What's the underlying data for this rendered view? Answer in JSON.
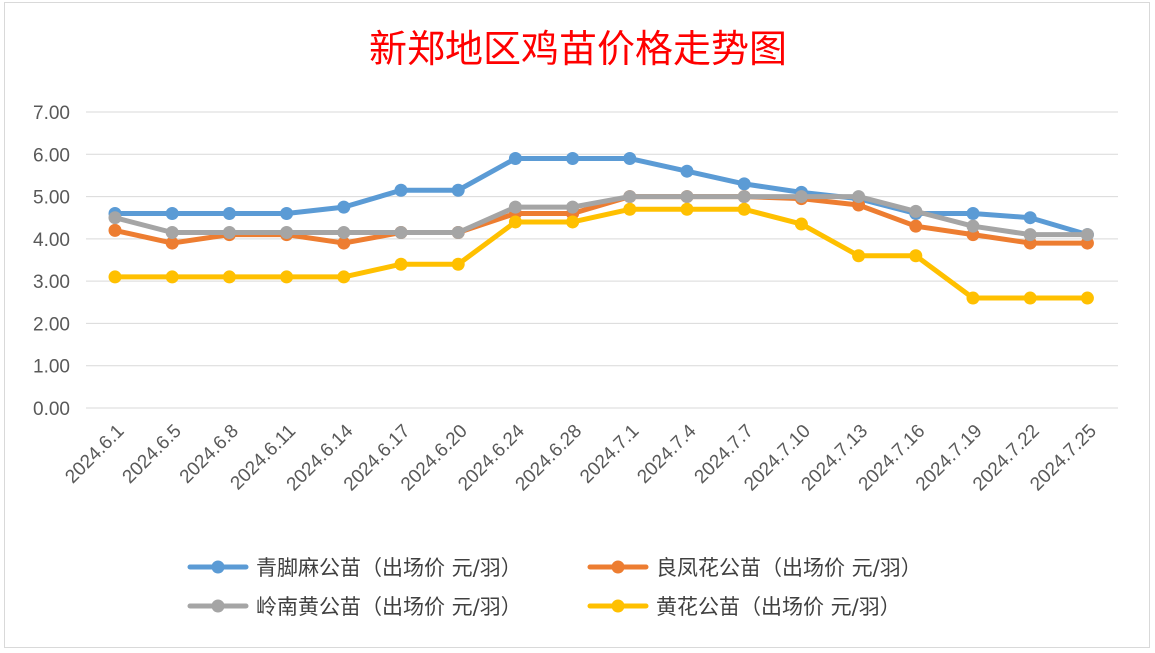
{
  "chart_data": {
    "type": "line",
    "title": "新郑地区鸡苗价格走势图",
    "xlabel": "",
    "ylabel": "",
    "ylim": [
      0,
      7
    ],
    "yticks": [
      "0.00",
      "1.00",
      "2.00",
      "3.00",
      "4.00",
      "5.00",
      "6.00",
      "7.00"
    ],
    "grid": true,
    "legend_position": "bottom",
    "categories": [
      "2024.6.1",
      "2024.6.5",
      "2024.6.8",
      "2024.6.11",
      "2024.6.14",
      "2024.6.17",
      "2024.6.20",
      "2024.6.24",
      "2024.6.28",
      "2024.7.1",
      "2024.7.4",
      "2024.7.7",
      "2024.7.10",
      "2024.7.13",
      "2024.7.16",
      "2024.7.19",
      "2024.7.22",
      "2024.7.25"
    ],
    "series": [
      {
        "name": "青脚麻公苗（出场价 元/羽）",
        "color": "#5b9bd5",
        "values": [
          4.6,
          4.6,
          4.6,
          4.6,
          4.75,
          5.15,
          5.15,
          5.9,
          5.9,
          5.9,
          5.6,
          5.3,
          5.1,
          4.95,
          4.6,
          4.6,
          4.5,
          4.1
        ]
      },
      {
        "name": "良凤花公苗（出场价 元/羽）",
        "color": "#ed7d31",
        "values": [
          4.2,
          3.9,
          4.1,
          4.1,
          3.9,
          4.15,
          4.15,
          4.6,
          4.6,
          5.0,
          5.0,
          5.0,
          4.95,
          4.8,
          4.3,
          4.1,
          3.9,
          3.9
        ]
      },
      {
        "name": "岭南黄公苗（出场价 元/羽）",
        "color": "#a5a5a5",
        "values": [
          4.5,
          4.15,
          4.15,
          4.15,
          4.15,
          4.15,
          4.15,
          4.75,
          4.75,
          5.0,
          5.0,
          5.0,
          5.0,
          5.0,
          4.65,
          4.3,
          4.1,
          4.1
        ]
      },
      {
        "name": "黄花公苗（出场价 元/羽）",
        "color": "#ffc000",
        "values": [
          3.1,
          3.1,
          3.1,
          3.1,
          3.1,
          3.4,
          3.4,
          4.4,
          4.4,
          4.7,
          4.7,
          4.7,
          4.35,
          3.6,
          3.6,
          2.6,
          2.6,
          2.6
        ]
      }
    ]
  },
  "colors": {
    "title": "#ff0000",
    "axis_text": "#595959",
    "gridline": "#d9d9d9",
    "legend_text": "#404040"
  }
}
